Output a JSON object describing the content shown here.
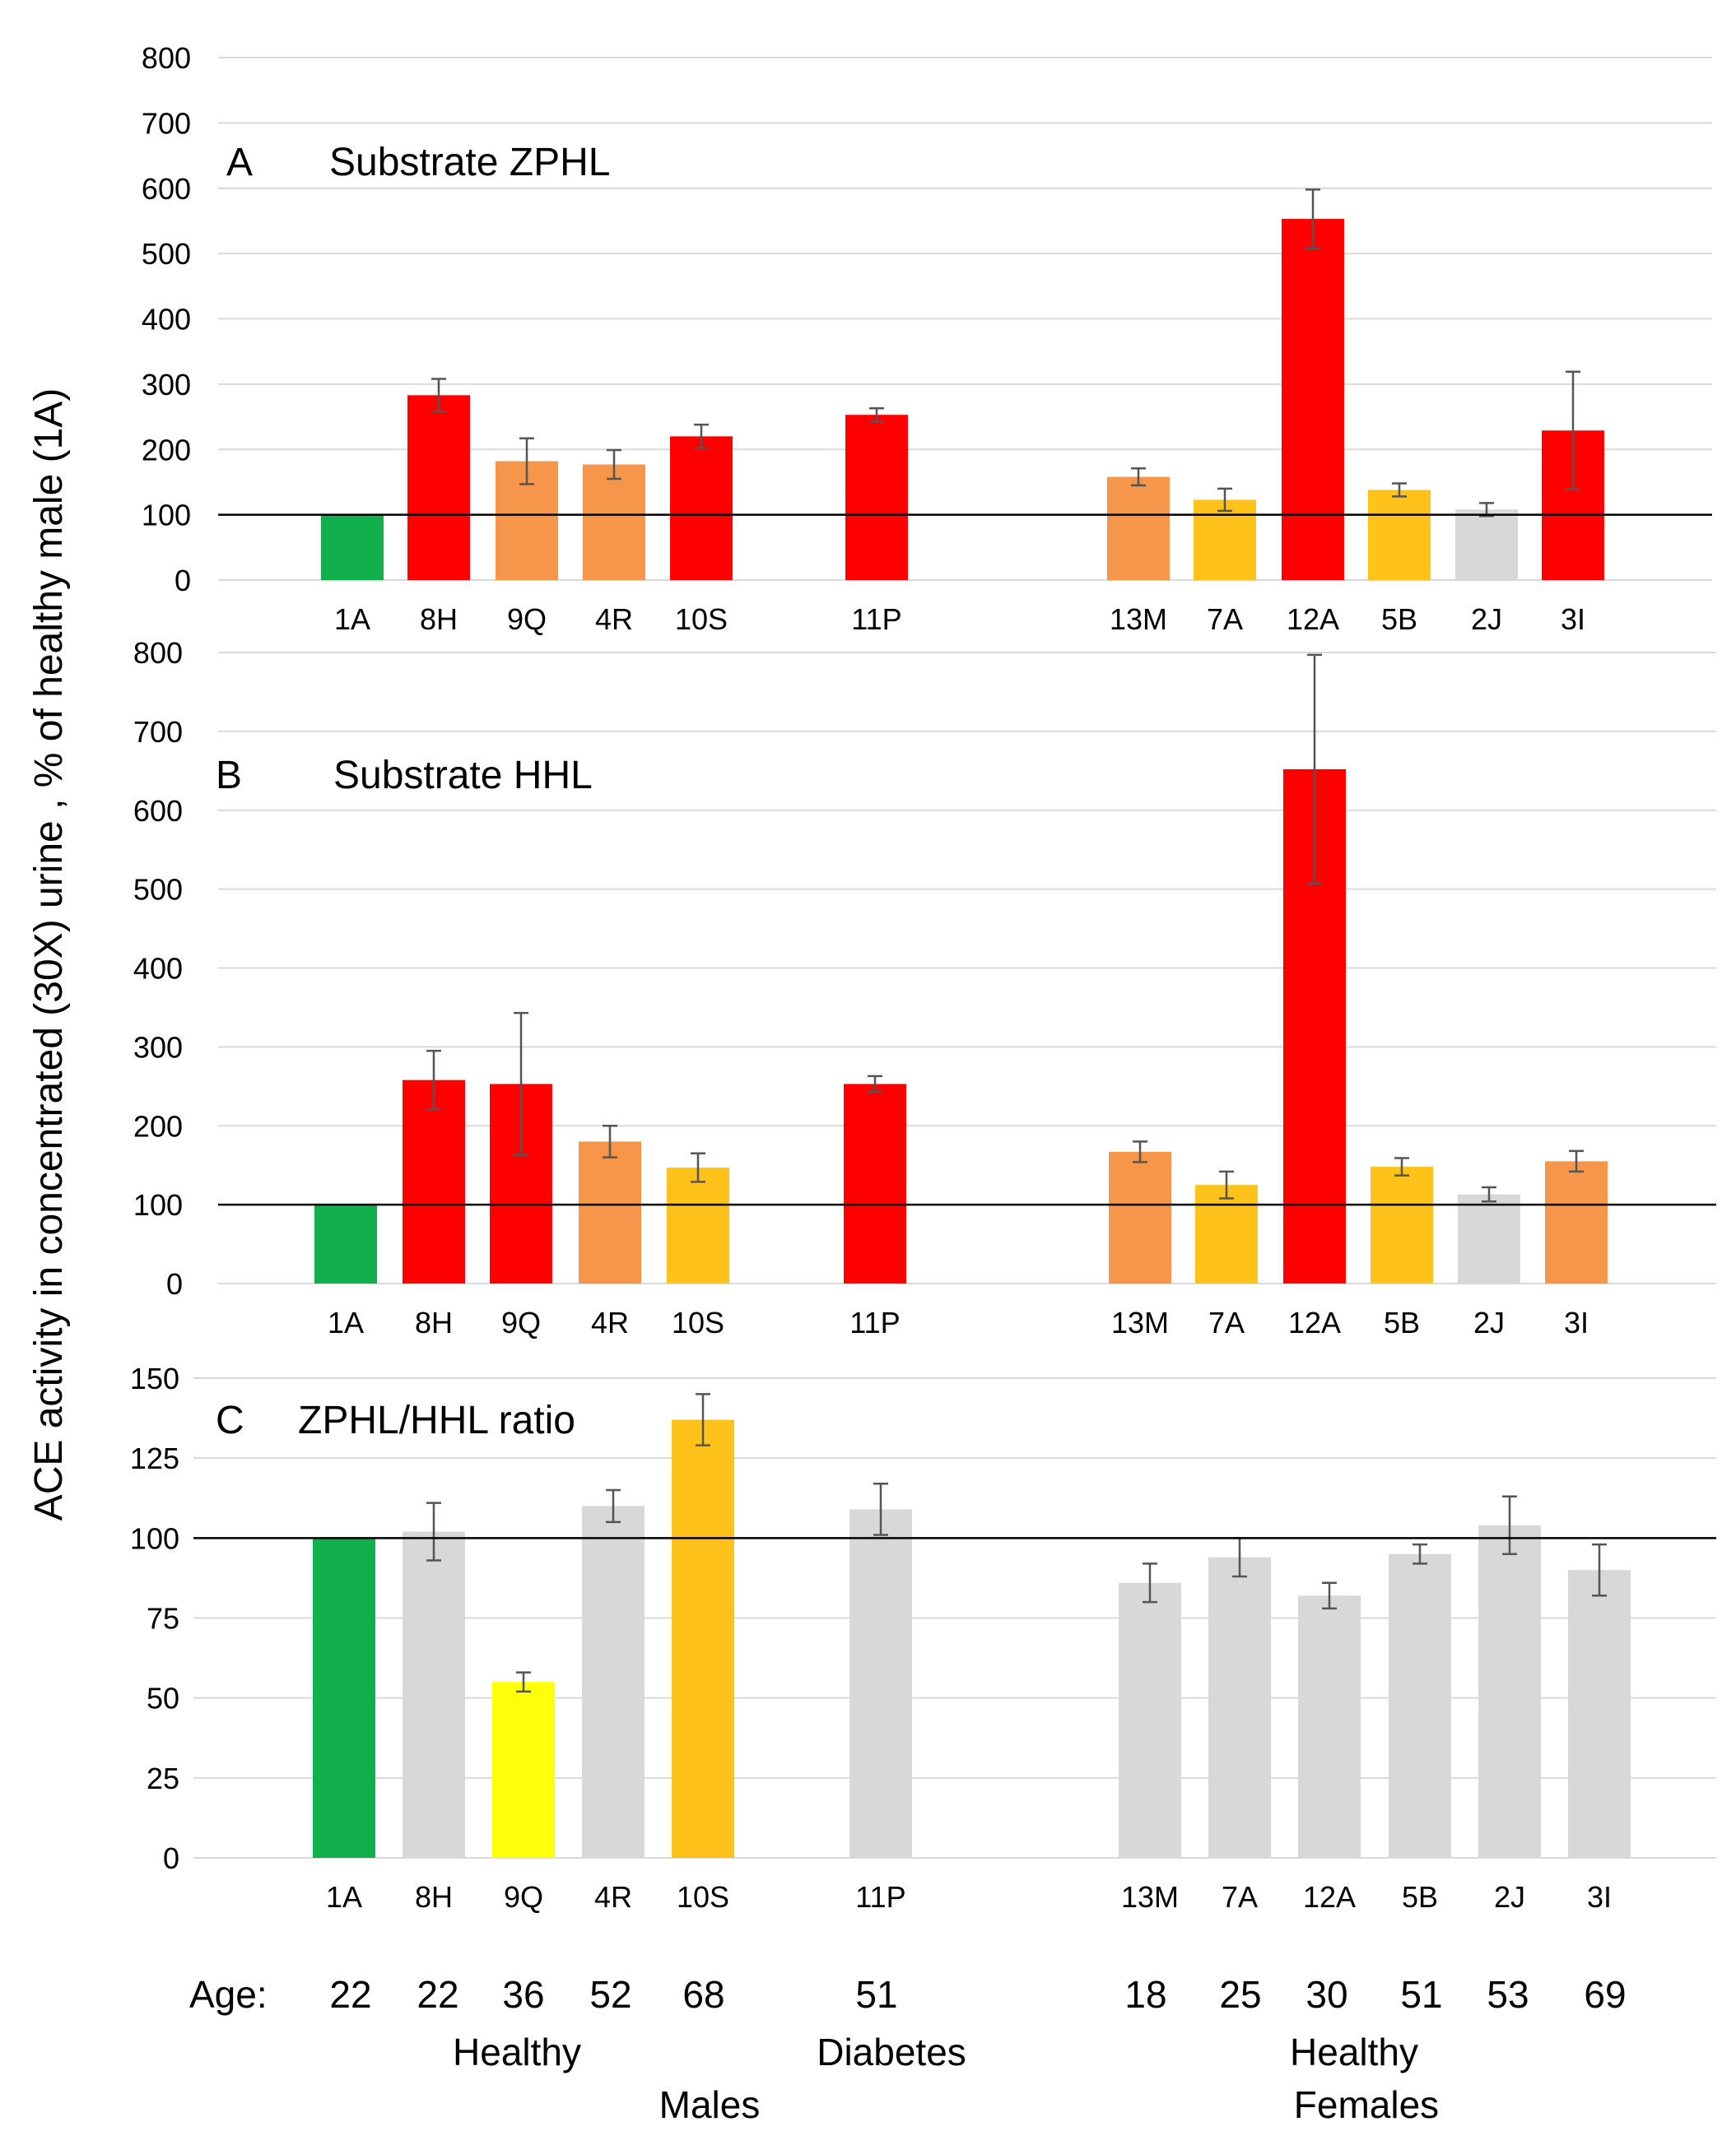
{
  "figure": {
    "ylabel": "ACE activity in concentrated (30X) urine , % of healthy male (1A)",
    "age_label": "Age:",
    "ages": [
      "22",
      "22",
      "36",
      "52",
      "68",
      "51",
      "18",
      "25",
      "30",
      "51",
      "53",
      "69"
    ],
    "group_labels": {
      "healthy_males": "Healthy",
      "diabetes": "Diabetes",
      "males": "Males",
      "healthy_females_1": "Healthy",
      "healthy_females_2": "Females"
    }
  },
  "colors": {
    "green": "#12b04c",
    "red": "#ff0000",
    "orange": "#f5964a",
    "gold": "#ffc21a",
    "yellow": "#ffff0a",
    "gray": "#d8d8d8"
  },
  "chart_data": [
    {
      "type": "bar",
      "panel_letter": "A",
      "title": "Substrate ZPHL",
      "categories": [
        "1A",
        "8H",
        "9Q",
        "4R",
        "10S",
        "11P",
        "13M",
        "7A",
        "12A",
        "5B",
        "2J",
        "3I"
      ],
      "values": [
        100,
        283,
        182,
        177,
        220,
        253,
        158,
        123,
        553,
        138,
        108,
        229
      ],
      "errors": [
        0,
        25,
        35,
        22,
        18,
        10,
        13,
        17,
        45,
        10,
        10,
        90
      ],
      "bar_colors": [
        "green",
        "red",
        "orange",
        "orange",
        "red",
        "red",
        "orange",
        "gold",
        "red",
        "gold",
        "gray",
        "red"
      ],
      "yticks": [
        0,
        100,
        200,
        300,
        400,
        500,
        600,
        700,
        800
      ],
      "ylim": [
        0,
        800
      ],
      "reference_line": 100
    },
    {
      "type": "bar",
      "panel_letter": "B",
      "title": "Substrate HHL",
      "categories": [
        "1A",
        "8H",
        "9Q",
        "4R",
        "10S",
        "11P",
        "13M",
        "7A",
        "12A",
        "5B",
        "2J",
        "3I"
      ],
      "values": [
        100,
        258,
        253,
        180,
        147,
        253,
        167,
        125,
        652,
        148,
        113,
        155
      ],
      "errors": [
        0,
        37,
        90,
        20,
        18,
        10,
        13,
        17,
        145,
        11,
        9,
        13
      ],
      "bar_colors": [
        "green",
        "red",
        "red",
        "orange",
        "gold",
        "red",
        "orange",
        "gold",
        "red",
        "gold",
        "gray",
        "orange"
      ],
      "yticks": [
        0,
        100,
        200,
        300,
        400,
        500,
        600,
        700,
        800
      ],
      "ylim": [
        0,
        800
      ],
      "reference_line": 100
    },
    {
      "type": "bar",
      "panel_letter": "C",
      "title": "ZPHL/HHL ratio",
      "categories": [
        "1A",
        "8H",
        "9Q",
        "4R",
        "10S",
        "11P",
        "13M",
        "7A",
        "12A",
        "5B",
        "2J",
        "3I"
      ],
      "values": [
        100,
        102,
        55,
        110,
        137,
        109,
        86,
        94,
        82,
        95,
        104,
        90
      ],
      "errors": [
        0,
        9,
        3,
        5,
        8,
        8,
        6,
        6,
        4,
        3,
        9,
        8
      ],
      "bar_colors": [
        "green",
        "gray",
        "yellow",
        "gray",
        "gold",
        "gray",
        "gray",
        "gray",
        "gray",
        "gray",
        "gray",
        "gray"
      ],
      "yticks": [
        0,
        25,
        50,
        75,
        100,
        125,
        150
      ],
      "ylim": [
        0,
        150
      ],
      "reference_line": 100
    }
  ]
}
